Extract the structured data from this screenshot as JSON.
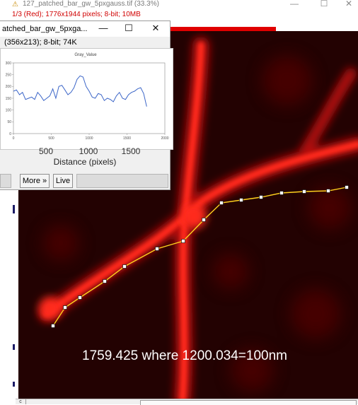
{
  "main_window": {
    "title": "127_patched_bar_gw_5pxgauss.tif (33.3%)",
    "app_icon": "⚠",
    "minimize_glyph": "—",
    "maximize_glyph": "☐",
    "close_glyph": "✕",
    "info": "1/3 (Red); 1776x1944 pixels; 8-bit; 10MB",
    "annotation": "1759.425 where 1200.034=100nm",
    "bottom_cell": "c"
  },
  "plot_window": {
    "title": "atched_bar_gw_5pxga...",
    "minimize_glyph": "—",
    "maximize_glyph": "☐",
    "close_glyph": "✕",
    "info": "(356x213); 8-bit; 74K",
    "big_x_ticks": [
      "500",
      "1000",
      "1500"
    ],
    "x_label": "Distance (pixels)",
    "buttons": {
      "more": "More »",
      "live": "Live"
    }
  },
  "chart_data": {
    "type": "line",
    "title": "Gray_Value",
    "xlabel": "Distance (pixels)",
    "ylabel": "",
    "xlim": [
      0,
      2000
    ],
    "ylim": [
      0,
      300
    ],
    "x_ticks": [
      "0",
      "500",
      "1000",
      "1500",
      "2000"
    ],
    "y_ticks": [
      "0",
      "50",
      "100",
      "150",
      "200",
      "250",
      "300"
    ],
    "grid": false,
    "line_color": "#3c66c8",
    "series": [
      {
        "x": [
          0,
          40,
          80,
          120,
          160,
          200,
          240,
          280,
          320,
          360,
          400,
          440,
          480,
          520,
          560,
          600,
          640,
          680,
          720,
          760,
          800,
          840,
          880,
          920,
          960,
          1000,
          1040,
          1080,
          1120,
          1160,
          1200,
          1240,
          1280,
          1320,
          1360,
          1400,
          1440,
          1480,
          1520,
          1560,
          1600,
          1640,
          1680,
          1720,
          1760
        ],
        "values": [
          180,
          185,
          165,
          175,
          145,
          150,
          155,
          145,
          175,
          160,
          140,
          150,
          160,
          190,
          150,
          200,
          205,
          185,
          165,
          175,
          195,
          230,
          245,
          240,
          200,
          180,
          155,
          150,
          170,
          165,
          140,
          150,
          145,
          135,
          160,
          175,
          150,
          145,
          165,
          175,
          180,
          190,
          195,
          170,
          115
        ]
      }
    ]
  },
  "overlay": {
    "polyline_color": "#ffd21e",
    "handle_color": "#ffffff"
  }
}
